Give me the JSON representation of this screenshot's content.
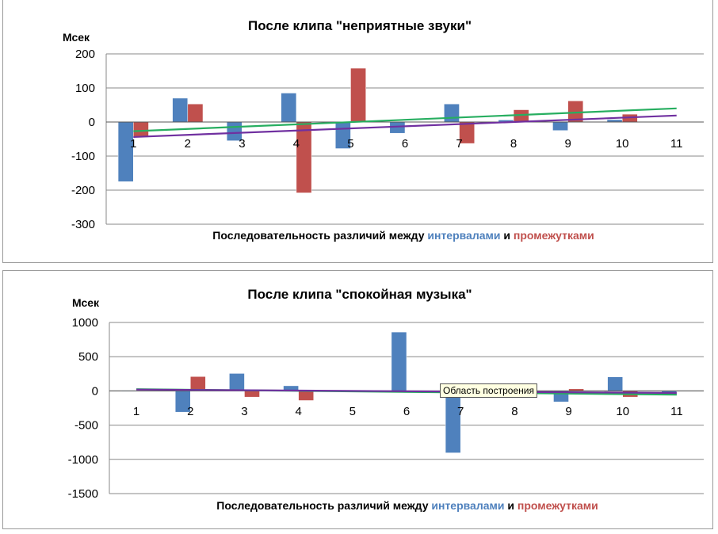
{
  "chart_data": [
    {
      "type": "bar",
      "title": "После клипа \"неприятные звуки\"",
      "ylabel": "Мсек",
      "xlabel_parts": [
        "Последовательность различий  между ",
        "интервалами",
        " и ",
        "промежутками"
      ],
      "categories": [
        "1",
        "2",
        "3",
        "4",
        "5",
        "6",
        "7",
        "8",
        "9",
        "10",
        "11"
      ],
      "ylim": [
        -300,
        200
      ],
      "yticks": [
        200,
        100,
        0,
        -100,
        -200,
        -300
      ],
      "gridlines": true,
      "legend": "none",
      "series": [
        {
          "color": "#4f81bd",
          "values": [
            -175,
            70,
            -55,
            85,
            -78,
            -33,
            53,
            6,
            -25,
            7,
            0
          ]
        },
        {
          "color": "#c0504d",
          "values": [
            -45,
            53,
            0,
            -208,
            158,
            0,
            -63,
            36,
            62,
            23,
            0
          ]
        }
      ],
      "trendlines": [
        {
          "color": "#27ae60",
          "from": -27,
          "to": 40
        },
        {
          "color": "#7030a0",
          "from": -44,
          "to": 19
        }
      ]
    },
    {
      "type": "bar",
      "title": "После клипа \"спокойная музыка\"",
      "ylabel": "Мсек",
      "xlabel_parts": [
        "Последовательность различий между ",
        "интервалами",
        " и  ",
        "промежутками"
      ],
      "categories": [
        "1",
        "2",
        "3",
        "4",
        "5",
        "6",
        "7",
        "8",
        "9",
        "10",
        "11"
      ],
      "ylim": [
        -1500,
        1000
      ],
      "yticks": [
        1000,
        500,
        0,
        -500,
        -1000,
        -1500
      ],
      "gridlines": true,
      "legend": "none",
      "series": [
        {
          "color": "#4f81bd",
          "values": [
            -10,
            -310,
            255,
            75,
            0,
            860,
            -905,
            0,
            -160,
            205,
            -40
          ]
        },
        {
          "color": "#c0504d",
          "values": [
            0,
            210,
            -90,
            -140,
            0,
            0,
            0,
            0,
            30,
            -90,
            0
          ]
        }
      ],
      "trendlines": [
        {
          "color": "#27ae60",
          "from": 25,
          "to": -55
        },
        {
          "color": "#7030a0",
          "from": 20,
          "to": -30
        }
      ]
    }
  ],
  "tooltip": {
    "text": "Область построения"
  }
}
